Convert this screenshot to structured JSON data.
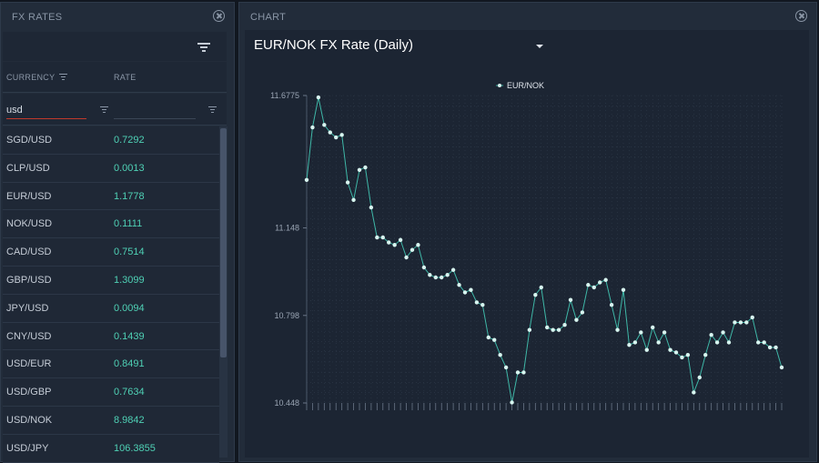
{
  "left_panel": {
    "title": "FX RATES",
    "columns": {
      "currency": "CURRENCY",
      "rate": "RATE"
    },
    "filters": {
      "currency_value": "usd",
      "rate_value": ""
    },
    "rows": [
      {
        "currency": "SGD/USD",
        "rate": "0.7292"
      },
      {
        "currency": "CLP/USD",
        "rate": "0.0013"
      },
      {
        "currency": "EUR/USD",
        "rate": "1.1778"
      },
      {
        "currency": "NOK/USD",
        "rate": "0.1111"
      },
      {
        "currency": "CAD/USD",
        "rate": "0.7514"
      },
      {
        "currency": "GBP/USD",
        "rate": "1.3099"
      },
      {
        "currency": "JPY/USD",
        "rate": "0.0094"
      },
      {
        "currency": "CNY/USD",
        "rate": "0.1439"
      },
      {
        "currency": "USD/EUR",
        "rate": "0.8491"
      },
      {
        "currency": "USD/GBP",
        "rate": "0.7634"
      },
      {
        "currency": "USD/NOK",
        "rate": "8.9842"
      },
      {
        "currency": "USD/JPY",
        "rate": "106.3855"
      }
    ]
  },
  "right_panel": {
    "title": "CHART",
    "selected_chart": "EUR/NOK FX Rate (Daily)"
  },
  "colors": {
    "accent": "#4fd1b5",
    "line": "#3fb8a8",
    "point": "#d8f6f0"
  },
  "chart_data": {
    "type": "line",
    "legend": "EUR/NOK",
    "legend_position": "top",
    "y_ticks": [
      "11.6775",
      "11.148",
      "10.798",
      "10.448"
    ],
    "ylim": [
      10.448,
      11.6775
    ],
    "grid": true,
    "series": [
      {
        "name": "EUR/NOK",
        "values": [
          11.34,
          11.55,
          11.67,
          11.56,
          11.53,
          11.51,
          11.52,
          11.33,
          11.26,
          11.38,
          11.39,
          11.23,
          11.11,
          11.11,
          11.09,
          11.08,
          11.1,
          11.03,
          11.06,
          11.08,
          10.99,
          10.96,
          10.95,
          10.95,
          10.96,
          10.98,
          10.92,
          10.89,
          10.9,
          10.85,
          10.84,
          10.71,
          10.7,
          10.64,
          10.59,
          10.45,
          10.57,
          10.57,
          10.74,
          10.88,
          10.91,
          10.75,
          10.74,
          10.74,
          10.76,
          10.86,
          10.78,
          10.81,
          10.92,
          10.91,
          10.93,
          10.94,
          10.84,
          10.74,
          10.9,
          10.68,
          10.69,
          10.73,
          10.66,
          10.75,
          10.69,
          10.73,
          10.66,
          10.65,
          10.63,
          10.64,
          10.49,
          10.55,
          10.64,
          10.72,
          10.69,
          10.73,
          10.69,
          10.77,
          10.77,
          10.77,
          10.79,
          10.69,
          10.69,
          10.67,
          10.67,
          10.59
        ]
      }
    ]
  }
}
